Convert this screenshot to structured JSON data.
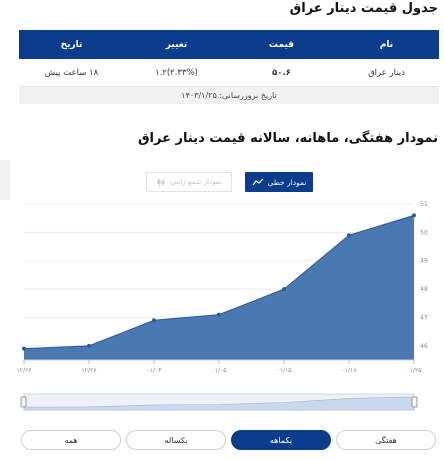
{
  "table_section": {
    "title": "جدول قیمت دینار عراق",
    "headers": [
      "نام",
      "قیمت",
      "تغییر",
      "تاریخ"
    ],
    "row": [
      "دینار عراق",
      "۵۰.۶",
      "۱.۲(۲.۳۳%)",
      "۱۸ ساعت پیش"
    ],
    "update_label": "تاریخ بروزرسانی: ۱۴۰۳/۱/۲۵"
  },
  "chart_section": {
    "title": "نمودار هفتگی، ماهانه، سالانه قیمت دینار عراق",
    "line_button": "نمودار خطی",
    "candle_button": "نمودار شمع ژاپنی",
    "line_icon": "line-chart-icon",
    "candle_icon": "candlestick-icon"
  },
  "ranges": [
    {
      "label": "هفتگی",
      "active": false
    },
    {
      "label": "یکماهه",
      "active": true
    },
    {
      "label": "یکساله",
      "active": false
    },
    {
      "label": "همه",
      "active": false
    }
  ],
  "colors": {
    "accent": "#0b3d8c",
    "area": "#4a78b0"
  },
  "chart_data": {
    "type": "area",
    "x": [
      "۱۲/۲۶",
      "۱۲/۲۷",
      "۰۱/۰۴",
      "۰۱/۰۵",
      "۰۱/۱۵",
      "۰۱/۱۸",
      "۰۱/۲۵"
    ],
    "values": [
      45.9,
      46.0,
      46.9,
      47.1,
      48.0,
      49.9,
      50.6
    ],
    "yticks": [
      46,
      47,
      48,
      49,
      50,
      51
    ],
    "ylim": [
      45.5,
      51
    ],
    "grid": true
  }
}
